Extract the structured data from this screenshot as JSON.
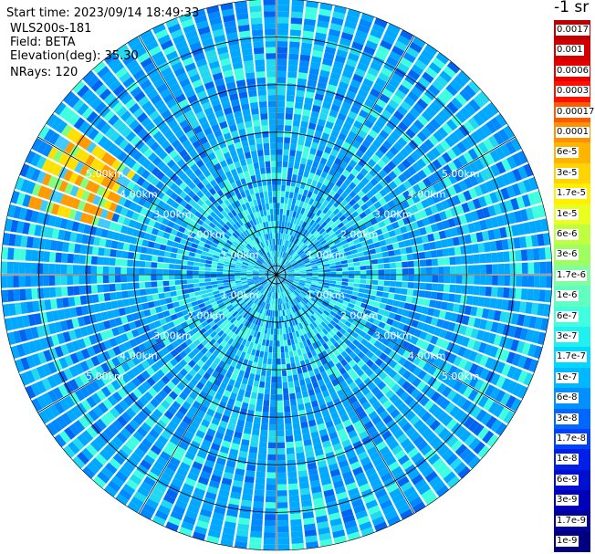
{
  "header": {
    "start_time": "Start time: 2023/09/14 18:49:33",
    "instrument": "WLS200s-181",
    "field": "Field: BETA",
    "elevation": "Elevation(deg): 35.30",
    "nrays": "NRays: 120"
  },
  "colorbar": {
    "unit": "-1 sr",
    "labels": [
      "0.0017",
      "0.001",
      "0.0006",
      "0.0003",
      "0.00017",
      "0.0001",
      "6e-5",
      "3e-5",
      "1.7e-5",
      "1e-5",
      "6e-6",
      "3e-6",
      "1.7e-6",
      "1e-6",
      "6e-7",
      "3e-7",
      "1.7e-7",
      "1e-7",
      "6e-8",
      "3e-8",
      "1.7e-8",
      "1e-8",
      "6e-9",
      "3e-9",
      "1.7e-9",
      "1e-9"
    ],
    "colors": [
      "#c00000",
      "#d40000",
      "#e80000",
      "#ff1000",
      "#ff5a00",
      "#ff9000",
      "#ffb400",
      "#ffd400",
      "#fff000",
      "#e8ff20",
      "#c0ff40",
      "#a0ff60",
      "#80ffa0",
      "#60ffc0",
      "#40ffe0",
      "#20f0f0",
      "#00d8ff",
      "#00b8ff",
      "#0090ff",
      "#0068ff",
      "#0040ff",
      "#0020e8",
      "#0010d0",
      "#0000b8",
      "#00009c",
      "#000080"
    ]
  },
  "chart_data": {
    "type": "ppi",
    "field": "BETA",
    "elevation_deg": 35.3,
    "n_rays": 120,
    "range_rings_km": [
      1,
      2,
      3,
      4,
      5
    ],
    "ring_labels": [
      "1.00km",
      "2.00km",
      "3.00km",
      "4.00km",
      "5.00km"
    ],
    "max_range_km": 5.8,
    "spoke_spacing_deg": 30,
    "colorscale": "log, 1e-9 to 0.0017 sr-1",
    "feature": "high backscatter patch (orange/yellow) near west-northwest edge"
  }
}
